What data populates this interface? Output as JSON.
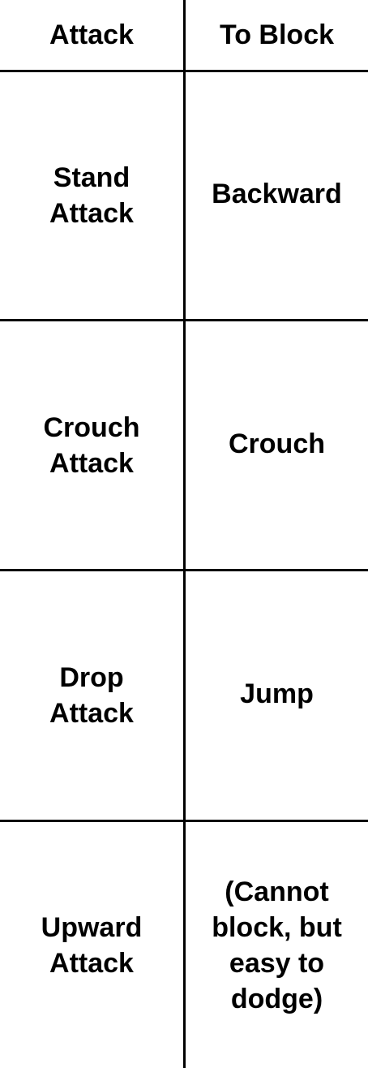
{
  "header": {
    "col1": "Attack",
    "col2": "To Block"
  },
  "rows": [
    {
      "attack": "Stand Attack",
      "block": "Backward"
    },
    {
      "attack": "Crouch Attack",
      "block": "Crouch"
    },
    {
      "attack": "Drop Attack",
      "block": "Jump"
    },
    {
      "attack": "Upward Attack",
      "block": "(Cannot block, but easy to dodge)"
    }
  ]
}
